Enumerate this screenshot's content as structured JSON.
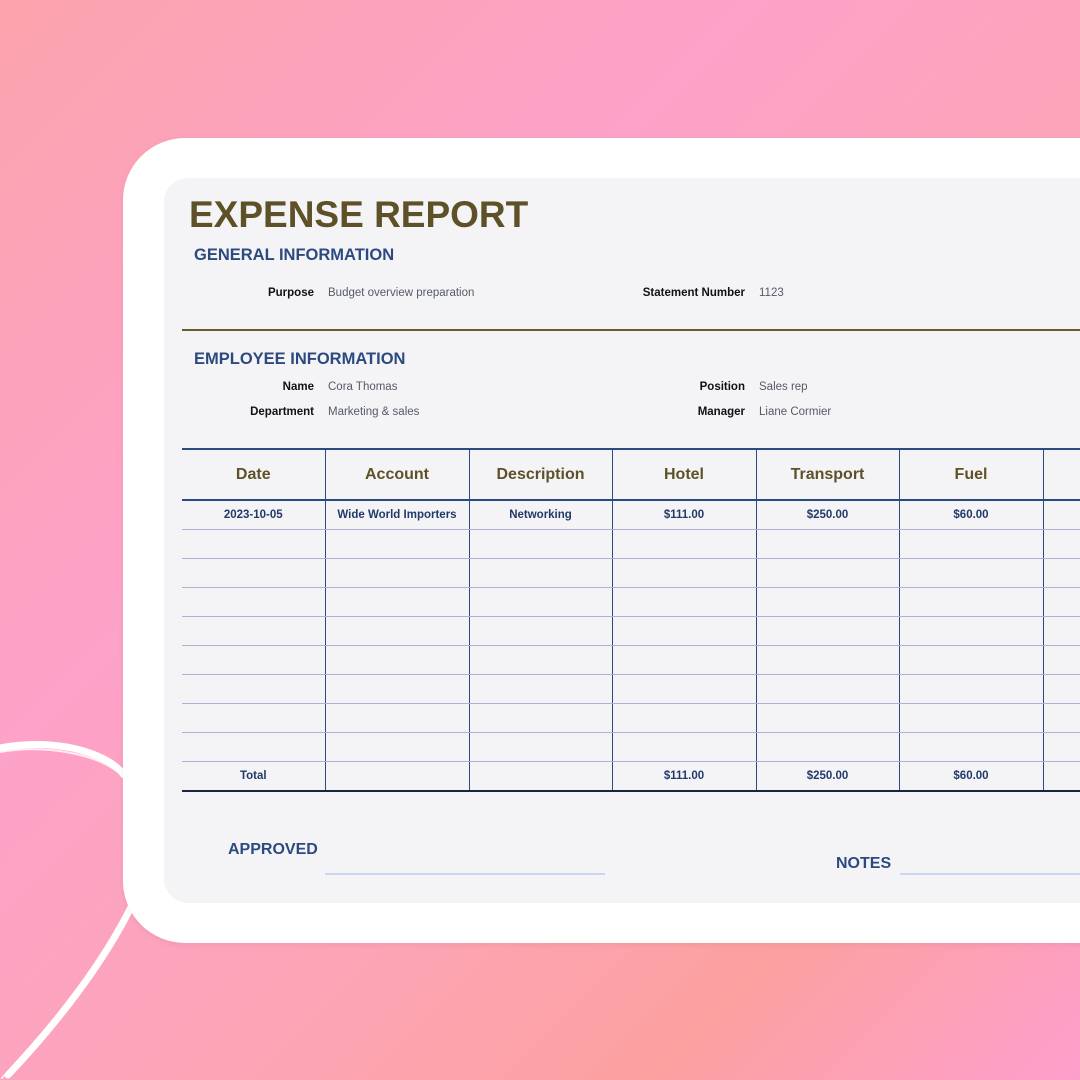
{
  "report": {
    "title": "EXPENSE REPORT",
    "general": {
      "heading": "GENERAL INFORMATION",
      "purpose_label": "Purpose",
      "purpose_value": "Budget overview preparation",
      "statement_label": "Statement Number",
      "statement_value": "1123"
    },
    "employee": {
      "heading": "EMPLOYEE INFORMATION",
      "name_label": "Name",
      "name_value": "Cora Thomas",
      "position_label": "Position",
      "position_value": "Sales rep",
      "department_label": "Department",
      "department_value": "Marketing & sales",
      "manager_label": "Manager",
      "manager_value": "Liane Cormier"
    },
    "table": {
      "headers": [
        "Date",
        "Account",
        "Description",
        "Hotel",
        "Transport",
        "Fuel",
        ""
      ],
      "rows": [
        [
          "2023-10-05",
          "Wide World Importers",
          "Networking",
          "$111.00",
          "$250.00",
          "$60.00",
          ""
        ],
        [
          "",
          "",
          "",
          "",
          "",
          "",
          ""
        ],
        [
          "",
          "",
          "",
          "",
          "",
          "",
          ""
        ],
        [
          "",
          "",
          "",
          "",
          "",
          "",
          ""
        ],
        [
          "",
          "",
          "",
          "",
          "",
          "",
          ""
        ],
        [
          "",
          "",
          "",
          "",
          "",
          "",
          ""
        ],
        [
          "",
          "",
          "",
          "",
          "",
          "",
          ""
        ],
        [
          "",
          "",
          "",
          "",
          "",
          "",
          ""
        ],
        [
          "",
          "",
          "",
          "",
          "",
          "",
          ""
        ]
      ],
      "total": [
        "Total",
        "",
        "",
        "$111.00",
        "$250.00",
        "$60.00",
        ""
      ]
    },
    "footer": {
      "approved_label": "APPROVED",
      "notes_label": "NOTES"
    }
  }
}
